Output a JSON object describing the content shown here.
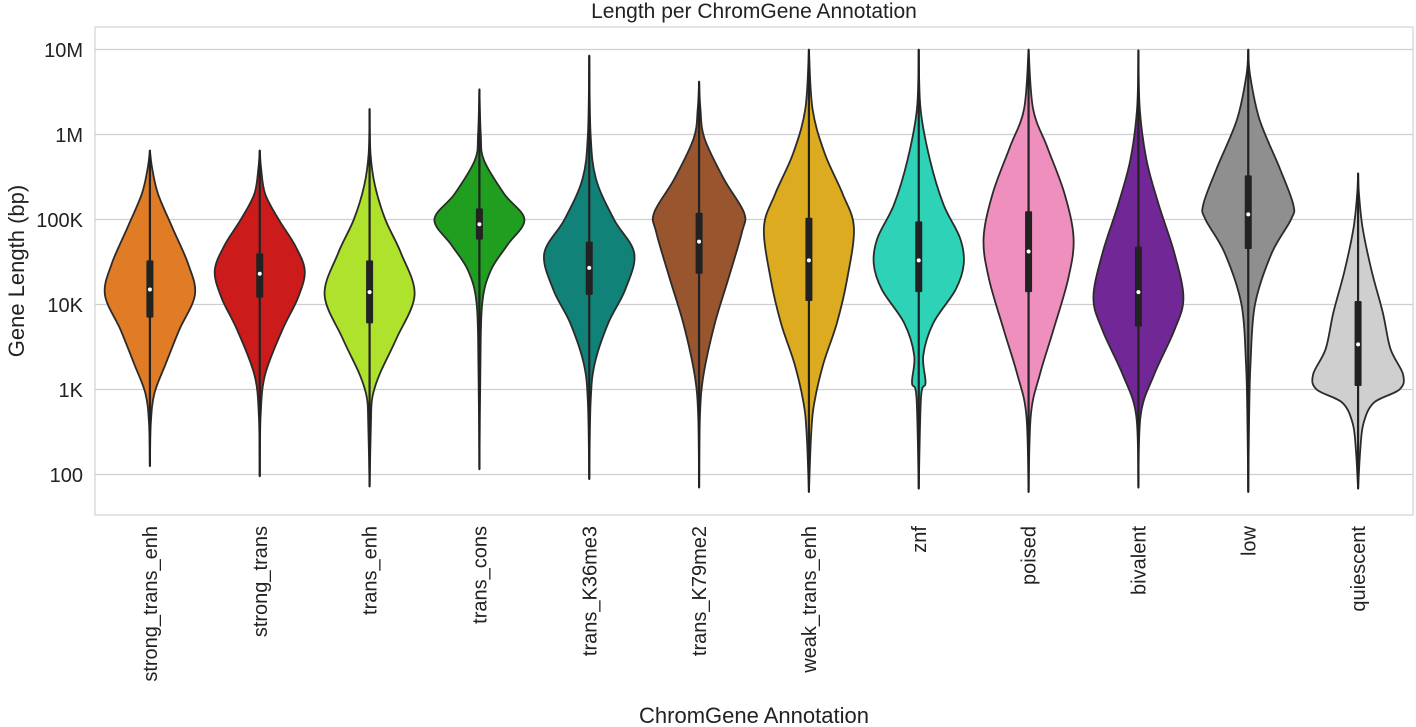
{
  "chart_data": {
    "type": "violin",
    "title": "Length per ChromGene Annotation",
    "xlabel": "ChromGene Annotation",
    "ylabel": "Gene Length (bp)",
    "yscale": "log",
    "ylim": [
      50,
      15000000
    ],
    "grid": true,
    "yticks": [
      {
        "value": 100,
        "label": "100"
      },
      {
        "value": 1000,
        "label": "1K"
      },
      {
        "value": 10000,
        "label": "10K"
      },
      {
        "value": 100000,
        "label": "100K"
      },
      {
        "value": 1000000,
        "label": "1M"
      },
      {
        "value": 10000000,
        "label": "10M"
      }
    ],
    "categories": [
      "strong_trans_enh",
      "strong_trans",
      "trans_enh",
      "trans_cons",
      "trans_K36me3",
      "trans_K79me2",
      "weak_trans_enh",
      "znf",
      "poised",
      "bivalent",
      "low",
      "quiescent"
    ],
    "colors": [
      "#e07b26",
      "#cc1b1b",
      "#aee22c",
      "#1f9e1f",
      "#118277",
      "#98552e",
      "#dcab1f",
      "#2ed2b7",
      "#ee8fbe",
      "#722797",
      "#8f8f8f",
      "#cfcfcf"
    ],
    "violins": [
      {
        "min": 125,
        "q1": 7000,
        "median": 15000,
        "q3": 33000,
        "max": 650000,
        "profile": [
          [
            125,
            0
          ],
          [
            400,
            0.02
          ],
          [
            900,
            0.1
          ],
          [
            2000,
            0.35
          ],
          [
            5000,
            0.65
          ],
          [
            13000,
            1.0
          ],
          [
            30000,
            0.85
          ],
          [
            80000,
            0.5
          ],
          [
            200000,
            0.18
          ],
          [
            400000,
            0.05
          ],
          [
            650000,
            0
          ]
        ]
      },
      {
        "min": 95,
        "q1": 12000,
        "median": 23000,
        "q3": 40000,
        "max": 650000,
        "profile": [
          [
            95,
            0
          ],
          [
            500,
            0.02
          ],
          [
            1500,
            0.12
          ],
          [
            5000,
            0.5
          ],
          [
            12000,
            0.85
          ],
          [
            25000,
            1.0
          ],
          [
            50000,
            0.78
          ],
          [
            100000,
            0.42
          ],
          [
            200000,
            0.12
          ],
          [
            400000,
            0.03
          ],
          [
            650000,
            0
          ]
        ]
      },
      {
        "min": 72,
        "q1": 6000,
        "median": 14000,
        "q3": 33000,
        "max": 2000000,
        "profile": [
          [
            72,
            0
          ],
          [
            400,
            0.03
          ],
          [
            800,
            0.06
          ],
          [
            1500,
            0.22
          ],
          [
            4000,
            0.6
          ],
          [
            13000,
            1.0
          ],
          [
            40000,
            0.7
          ],
          [
            100000,
            0.35
          ],
          [
            250000,
            0.12
          ],
          [
            600000,
            0.02
          ],
          [
            2000000,
            0
          ]
        ]
      },
      {
        "min": 115,
        "q1": 58000,
        "median": 88000,
        "q3": 135000,
        "max": 3400000,
        "profile": [
          [
            115,
            0
          ],
          [
            1500,
            0.02
          ],
          [
            10000,
            0.06
          ],
          [
            25000,
            0.25
          ],
          [
            50000,
            0.62
          ],
          [
            100000,
            1.0
          ],
          [
            200000,
            0.55
          ],
          [
            500000,
            0.1
          ],
          [
            1000000,
            0.03
          ],
          [
            3400000,
            0
          ]
        ]
      },
      {
        "min": 88,
        "q1": 13000,
        "median": 27000,
        "q3": 55000,
        "max": 8500000,
        "profile": [
          [
            88,
            0
          ],
          [
            700,
            0.03
          ],
          [
            2000,
            0.12
          ],
          [
            6000,
            0.42
          ],
          [
            15000,
            0.8
          ],
          [
            40000,
            1.0
          ],
          [
            100000,
            0.55
          ],
          [
            300000,
            0.15
          ],
          [
            1000000,
            0.03
          ],
          [
            8500000,
            0
          ]
        ]
      },
      {
        "min": 70,
        "q1": 23000,
        "median": 55000,
        "q3": 120000,
        "max": 4200000,
        "profile": [
          [
            70,
            0
          ],
          [
            500,
            0.02
          ],
          [
            1500,
            0.1
          ],
          [
            6000,
            0.35
          ],
          [
            20000,
            0.65
          ],
          [
            70000,
            0.95
          ],
          [
            120000,
            1.0
          ],
          [
            300000,
            0.55
          ],
          [
            900000,
            0.12
          ],
          [
            2000000,
            0.03
          ],
          [
            4200000,
            0
          ]
        ]
      },
      {
        "min": 62,
        "q1": 11000,
        "median": 33000,
        "q3": 105000,
        "max": 10000000,
        "profile": [
          [
            62,
            0
          ],
          [
            300,
            0.05
          ],
          [
            700,
            0.12
          ],
          [
            2000,
            0.32
          ],
          [
            6000,
            0.62
          ],
          [
            20000,
            0.85
          ],
          [
            80000,
            1.0
          ],
          [
            200000,
            0.75
          ],
          [
            600000,
            0.35
          ],
          [
            2000000,
            0.08
          ],
          [
            10000000,
            0
          ]
        ]
      },
      {
        "min": 68,
        "q1": 14000,
        "median": 33000,
        "q3": 95000,
        "max": 10000000,
        "profile": [
          [
            68,
            0
          ],
          [
            800,
            0.05
          ],
          [
            1200,
            0.15
          ],
          [
            2500,
            0.1
          ],
          [
            6000,
            0.32
          ],
          [
            15000,
            0.82
          ],
          [
            30000,
            1.0
          ],
          [
            60000,
            0.92
          ],
          [
            150000,
            0.55
          ],
          [
            500000,
            0.25
          ],
          [
            2000000,
            0.04
          ],
          [
            10000000,
            0
          ]
        ]
      },
      {
        "min": 62,
        "q1": 14000,
        "median": 42000,
        "q3": 125000,
        "max": 10000000,
        "profile": [
          [
            62,
            0
          ],
          [
            500,
            0.05
          ],
          [
            1500,
            0.25
          ],
          [
            5000,
            0.55
          ],
          [
            20000,
            0.88
          ],
          [
            60000,
            1.0
          ],
          [
            200000,
            0.8
          ],
          [
            700000,
            0.42
          ],
          [
            2000000,
            0.1
          ],
          [
            10000000,
            0
          ]
        ]
      },
      {
        "min": 70,
        "q1": 5500,
        "median": 14000,
        "q3": 48000,
        "max": 9800000,
        "profile": [
          [
            70,
            0
          ],
          [
            500,
            0.05
          ],
          [
            1500,
            0.35
          ],
          [
            5000,
            0.8
          ],
          [
            12000,
            1.0
          ],
          [
            40000,
            0.8
          ],
          [
            150000,
            0.45
          ],
          [
            500000,
            0.18
          ],
          [
            2000000,
            0.03
          ],
          [
            9800000,
            0
          ]
        ]
      },
      {
        "min": 62,
        "q1": 45000,
        "median": 115000,
        "q3": 330000,
        "max": 10000000,
        "profile": [
          [
            62,
            0
          ],
          [
            500,
            0.02
          ],
          [
            2000,
            0.05
          ],
          [
            10000,
            0.15
          ],
          [
            40000,
            0.52
          ],
          [
            100000,
            0.95
          ],
          [
            150000,
            1.0
          ],
          [
            400000,
            0.7
          ],
          [
            1500000,
            0.25
          ],
          [
            5000000,
            0.04
          ],
          [
            10000000,
            0
          ]
        ]
      },
      {
        "min": 68,
        "q1": 1100,
        "median": 3400,
        "q3": 11000,
        "max": 350000,
        "profile": [
          [
            68,
            0
          ],
          [
            200,
            0.05
          ],
          [
            400,
            0.12
          ],
          [
            700,
            0.35
          ],
          [
            1000,
            0.92
          ],
          [
            1500,
            1.0
          ],
          [
            3000,
            0.72
          ],
          [
            8000,
            0.55
          ],
          [
            25000,
            0.3
          ],
          [
            80000,
            0.1
          ],
          [
            200000,
            0.02
          ],
          [
            350000,
            0
          ]
        ]
      }
    ]
  }
}
